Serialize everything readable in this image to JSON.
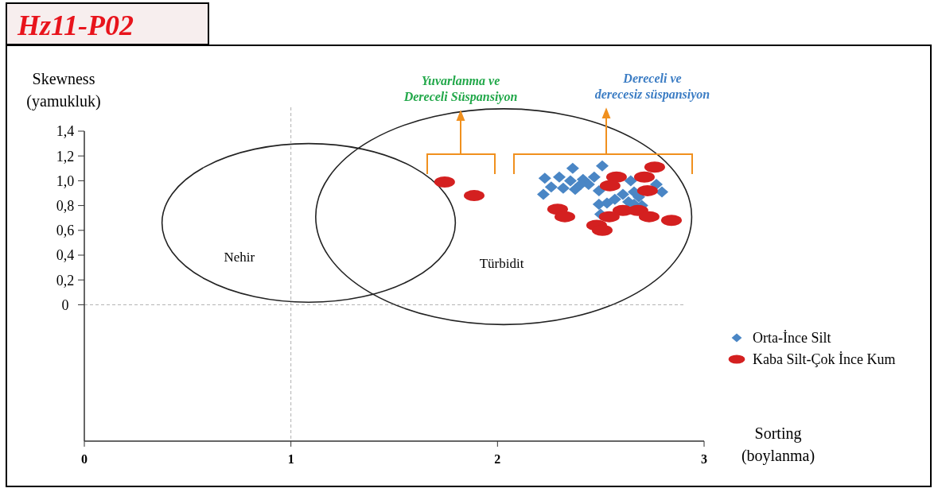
{
  "chart_data": {
    "type": "scatter",
    "title": "Hz11-P02",
    "xlabel": "Sorting\n(boylanma)",
    "ylabel": "Skewness\n(yamukluk)",
    "xlim": [
      0,
      3
    ],
    "xticks": [
      0,
      1,
      2,
      3
    ],
    "ylim": [
      -1.1,
      1.4
    ],
    "yticks": [
      0,
      {
        "value": 0.2,
        "label": "0,2"
      },
      {
        "value": 0.4,
        "label": "0,4"
      },
      {
        "value": 0.6,
        "label": "0,6"
      },
      {
        "value": 0.8,
        "label": "0,8"
      },
      {
        "value": 1.0,
        "label": "1,0"
      },
      {
        "value": 1.2,
        "label": "1,2"
      },
      {
        "value": 1.4,
        "label": "1,4"
      }
    ],
    "legend": "right",
    "ref_lines": [
      {
        "axis": "x",
        "value": 1,
        "line_style": "dashed",
        "color": "#b0b0b0"
      },
      {
        "axis": "y",
        "value": 0,
        "line_style": "dashed",
        "color": "#b0b0b0"
      }
    ],
    "annotations": [
      "Yuvarlanma ve\nDereceli Süspansiyon",
      "Dereceli ve\nderecesiz süspansiyon",
      "Nehir",
      "Türbidit"
    ],
    "series": [
      {
        "name": "Orta-İnce Silt",
        "color": "#4a86c5",
        "marker": "diamond",
        "x": [
          2.364,
          2.507,
          2.229,
          2.299,
          2.353,
          2.414,
          2.468,
          2.441,
          2.26,
          2.318,
          2.222,
          2.376,
          2.491,
          2.645,
          2.769,
          2.796,
          2.661,
          2.607,
          2.568,
          2.634,
          2.684,
          2.53,
          2.491,
          2.661,
          2.699,
          2.499,
          2.403
        ],
        "values": [
          1.1,
          1.12,
          1.02,
          1.03,
          1.0,
          1.01,
          1.03,
          0.97,
          0.95,
          0.94,
          0.89,
          0.93,
          0.92,
          1.0,
          0.97,
          0.91,
          0.91,
          0.89,
          0.85,
          0.83,
          0.87,
          0.82,
          0.81,
          0.81,
          0.8,
          0.73,
          0.97
        ]
      },
      {
        "name": "Kaba Silt-Çok İnce Kum",
        "color": "#d42020",
        "marker": "circle",
        "x": [
          1.744,
          1.887,
          2.761,
          2.576,
          2.711,
          2.545,
          2.726,
          2.291,
          2.326,
          2.607,
          2.68,
          2.541,
          2.734,
          2.842,
          2.48,
          2.507
        ],
        "values": [
          0.99,
          0.88,
          1.11,
          1.03,
          1.03,
          0.96,
          0.92,
          0.77,
          0.71,
          0.76,
          0.76,
          0.71,
          0.71,
          0.68,
          0.64,
          0.6
        ]
      }
    ]
  }
}
